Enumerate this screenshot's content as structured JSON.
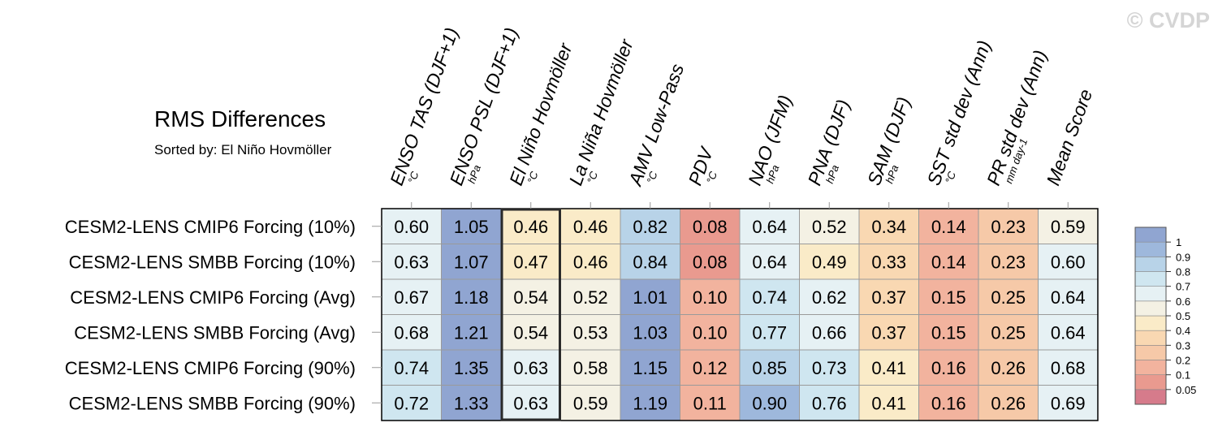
{
  "watermark": "© CVDP",
  "chart_data": {
    "type": "heatmap",
    "title": "RMS Differences",
    "subtitle": "Sorted by: El Niño Hovmöller",
    "columns": [
      {
        "label": "ENSO TAS (DJF+1)",
        "unit": "°C"
      },
      {
        "label": "ENSO PSL (DJF+1)",
        "unit": "hPa"
      },
      {
        "label": "El Niño Hovmöller",
        "unit": "°C"
      },
      {
        "label": "La Niña Hovmöller",
        "unit": "°C"
      },
      {
        "label": "AMV Low-Pass",
        "unit": "°C"
      },
      {
        "label": "PDV",
        "unit": "°C"
      },
      {
        "label": "NAO (JFM)",
        "unit": "hPa"
      },
      {
        "label": "PNA (DJF)",
        "unit": "hPa"
      },
      {
        "label": "SAM (DJF)",
        "unit": "hPa"
      },
      {
        "label": "SST std dev (Ann)",
        "unit": "°C"
      },
      {
        "label": "PR std dev (Ann)",
        "unit": "mm day-1"
      },
      {
        "label": "Mean Score",
        "unit": ""
      }
    ],
    "rows": [
      "CESM2-LENS CMIP6 Forcing (10%)",
      "CESM2-LENS SMBB Forcing (10%)",
      "CESM2-LENS CMIP6 Forcing (Avg)",
      "CESM2-LENS SMBB Forcing (Avg)",
      "CESM2-LENS CMIP6 Forcing (90%)",
      "CESM2-LENS SMBB Forcing (90%)"
    ],
    "values": [
      [
        "0.60",
        "1.05",
        "0.46",
        "0.46",
        "0.82",
        "0.08",
        "0.64",
        "0.52",
        "0.34",
        "0.14",
        "0.23",
        "0.59"
      ],
      [
        "0.63",
        "1.07",
        "0.47",
        "0.46",
        "0.84",
        "0.08",
        "0.64",
        "0.49",
        "0.33",
        "0.14",
        "0.23",
        "0.60"
      ],
      [
        "0.67",
        "1.18",
        "0.54",
        "0.52",
        "1.01",
        "0.10",
        "0.74",
        "0.62",
        "0.37",
        "0.15",
        "0.25",
        "0.64"
      ],
      [
        "0.68",
        "1.21",
        "0.54",
        "0.53",
        "1.03",
        "0.10",
        "0.77",
        "0.66",
        "0.37",
        "0.15",
        "0.25",
        "0.64"
      ],
      [
        "0.74",
        "1.35",
        "0.63",
        "0.58",
        "1.15",
        "0.12",
        "0.85",
        "0.73",
        "0.41",
        "0.16",
        "0.26",
        "0.68"
      ],
      [
        "0.72",
        "1.33",
        "0.63",
        "0.59",
        "1.19",
        "0.11",
        "0.90",
        "0.76",
        "0.41",
        "0.16",
        "0.26",
        "0.69"
      ]
    ],
    "highlighted_column": "El Niño Hovmöller",
    "colorbar": {
      "levels": [
        "0.05",
        "0.1",
        "0.2",
        "0.3",
        "0.4",
        "0.5",
        "0.6",
        "0.7",
        "0.8",
        "0.9",
        "1"
      ],
      "colors_low_to_high": [
        "#d67b8b",
        "#e99a8f",
        "#f2b39e",
        "#f6c9a8",
        "#f9d8b2",
        "#faebc8",
        "#f4f1e4",
        "#e6f1f4",
        "#cfe6f0",
        "#b8d3e8",
        "#9eb8dc",
        "#90a5d1"
      ]
    }
  }
}
